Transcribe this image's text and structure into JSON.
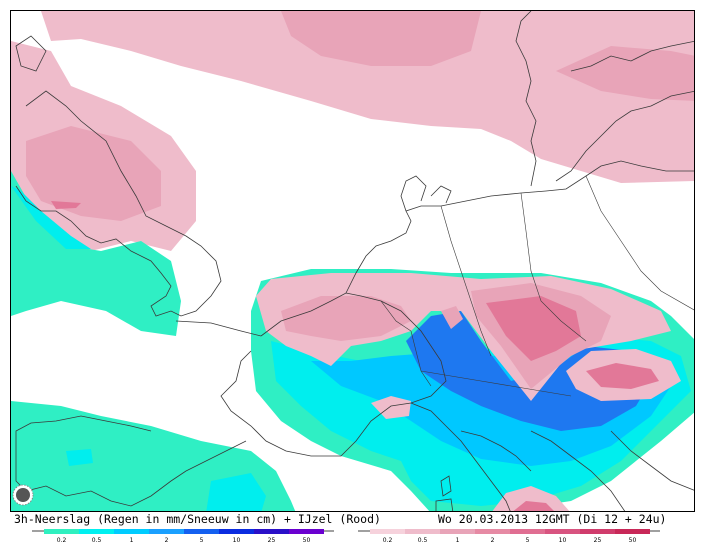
{
  "caption": {
    "left": "3h-Neerslag (Regen in mm/Sneeuw in cm) + IJzel (Rood)",
    "right": "Wo 20.03.2013 12GMT (Di 12 + 24u)"
  },
  "legend_rain": {
    "ticks": [
      "0.2",
      "0.5",
      "1",
      "2",
      "5",
      "10",
      "25",
      "50"
    ],
    "colors": [
      "#2ff0c0",
      "#00f0f0",
      "#00ccff",
      "#1aa0ff",
      "#1460f0",
      "#0a2ce0",
      "#2a10c8",
      "#6a00d0"
    ]
  },
  "legend_ice": {
    "ticks": [
      "0.2",
      "0.5",
      "1",
      "2",
      "5",
      "10",
      "25",
      "50"
    ],
    "colors": [
      "#f6d2dc",
      "#efbccb",
      "#e8a4b8",
      "#e68aa4",
      "#e06e92",
      "#d85480",
      "#d03c6c",
      "#c82858"
    ]
  },
  "colors": {
    "light_pink": "#efbccb",
    "mid_pink": "#e898b0",
    "deep_pink": "#e27898",
    "teal": "#2fefc4",
    "cyan": "#00eeee",
    "sky": "#00c8ff",
    "blue": "#1e78f0",
    "border": "#3a3a3a"
  },
  "icons": [
    "sun-logo-icon"
  ]
}
